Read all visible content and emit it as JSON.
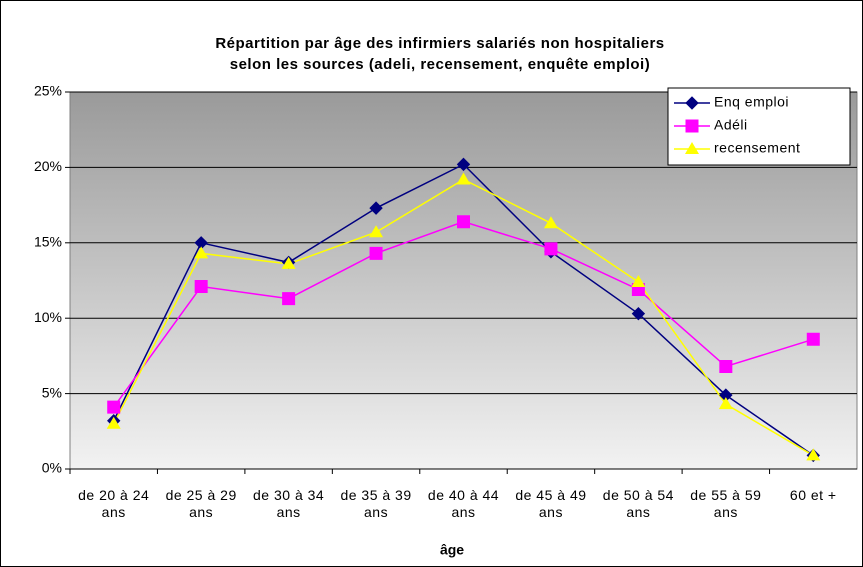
{
  "chart_data": {
    "type": "line",
    "title": [
      "Répartition par âge des infirmiers salariés non hospitaliers",
      "selon les sources (adeli, recensement, enquête emploi)"
    ],
    "x_label": "âge",
    "categories": [
      "de 20 à 24 ans",
      "de 25 à 29 ans",
      "de 30 à 34 ans",
      "de 35 à 39 ans",
      "de 40 à 44 ans",
      "de 45 à 49 ans",
      "de 50 à 54 ans",
      "de 55 à 59 ans",
      "60 et +"
    ],
    "series": [
      {
        "name": "Enq emploi",
        "color": "#000080",
        "marker": "diamond",
        "values": [
          3.2,
          15.0,
          13.7,
          17.3,
          20.2,
          14.4,
          10.3,
          4.9,
          0.9
        ]
      },
      {
        "name": "Adéli",
        "color": "#ff00ff",
        "marker": "square",
        "values": [
          4.1,
          12.1,
          11.3,
          14.3,
          16.4,
          14.6,
          11.9,
          6.8,
          8.6
        ]
      },
      {
        "name": "recensement",
        "color": "#ffff00",
        "marker": "triangle",
        "values": [
          3.0,
          14.3,
          13.6,
          15.7,
          19.2,
          16.3,
          12.4,
          4.3,
          0.9
        ]
      }
    ],
    "ylim": [
      0,
      25
    ],
    "yticks": [
      {
        "value": 0,
        "label": "0%"
      },
      {
        "value": 5,
        "label": "5%"
      },
      {
        "value": 10,
        "label": "10%"
      },
      {
        "value": 15,
        "label": "15%"
      },
      {
        "value": 20,
        "label": "20%"
      },
      {
        "value": 25,
        "label": "25%"
      }
    ],
    "grid": true,
    "legend": "top-right"
  }
}
